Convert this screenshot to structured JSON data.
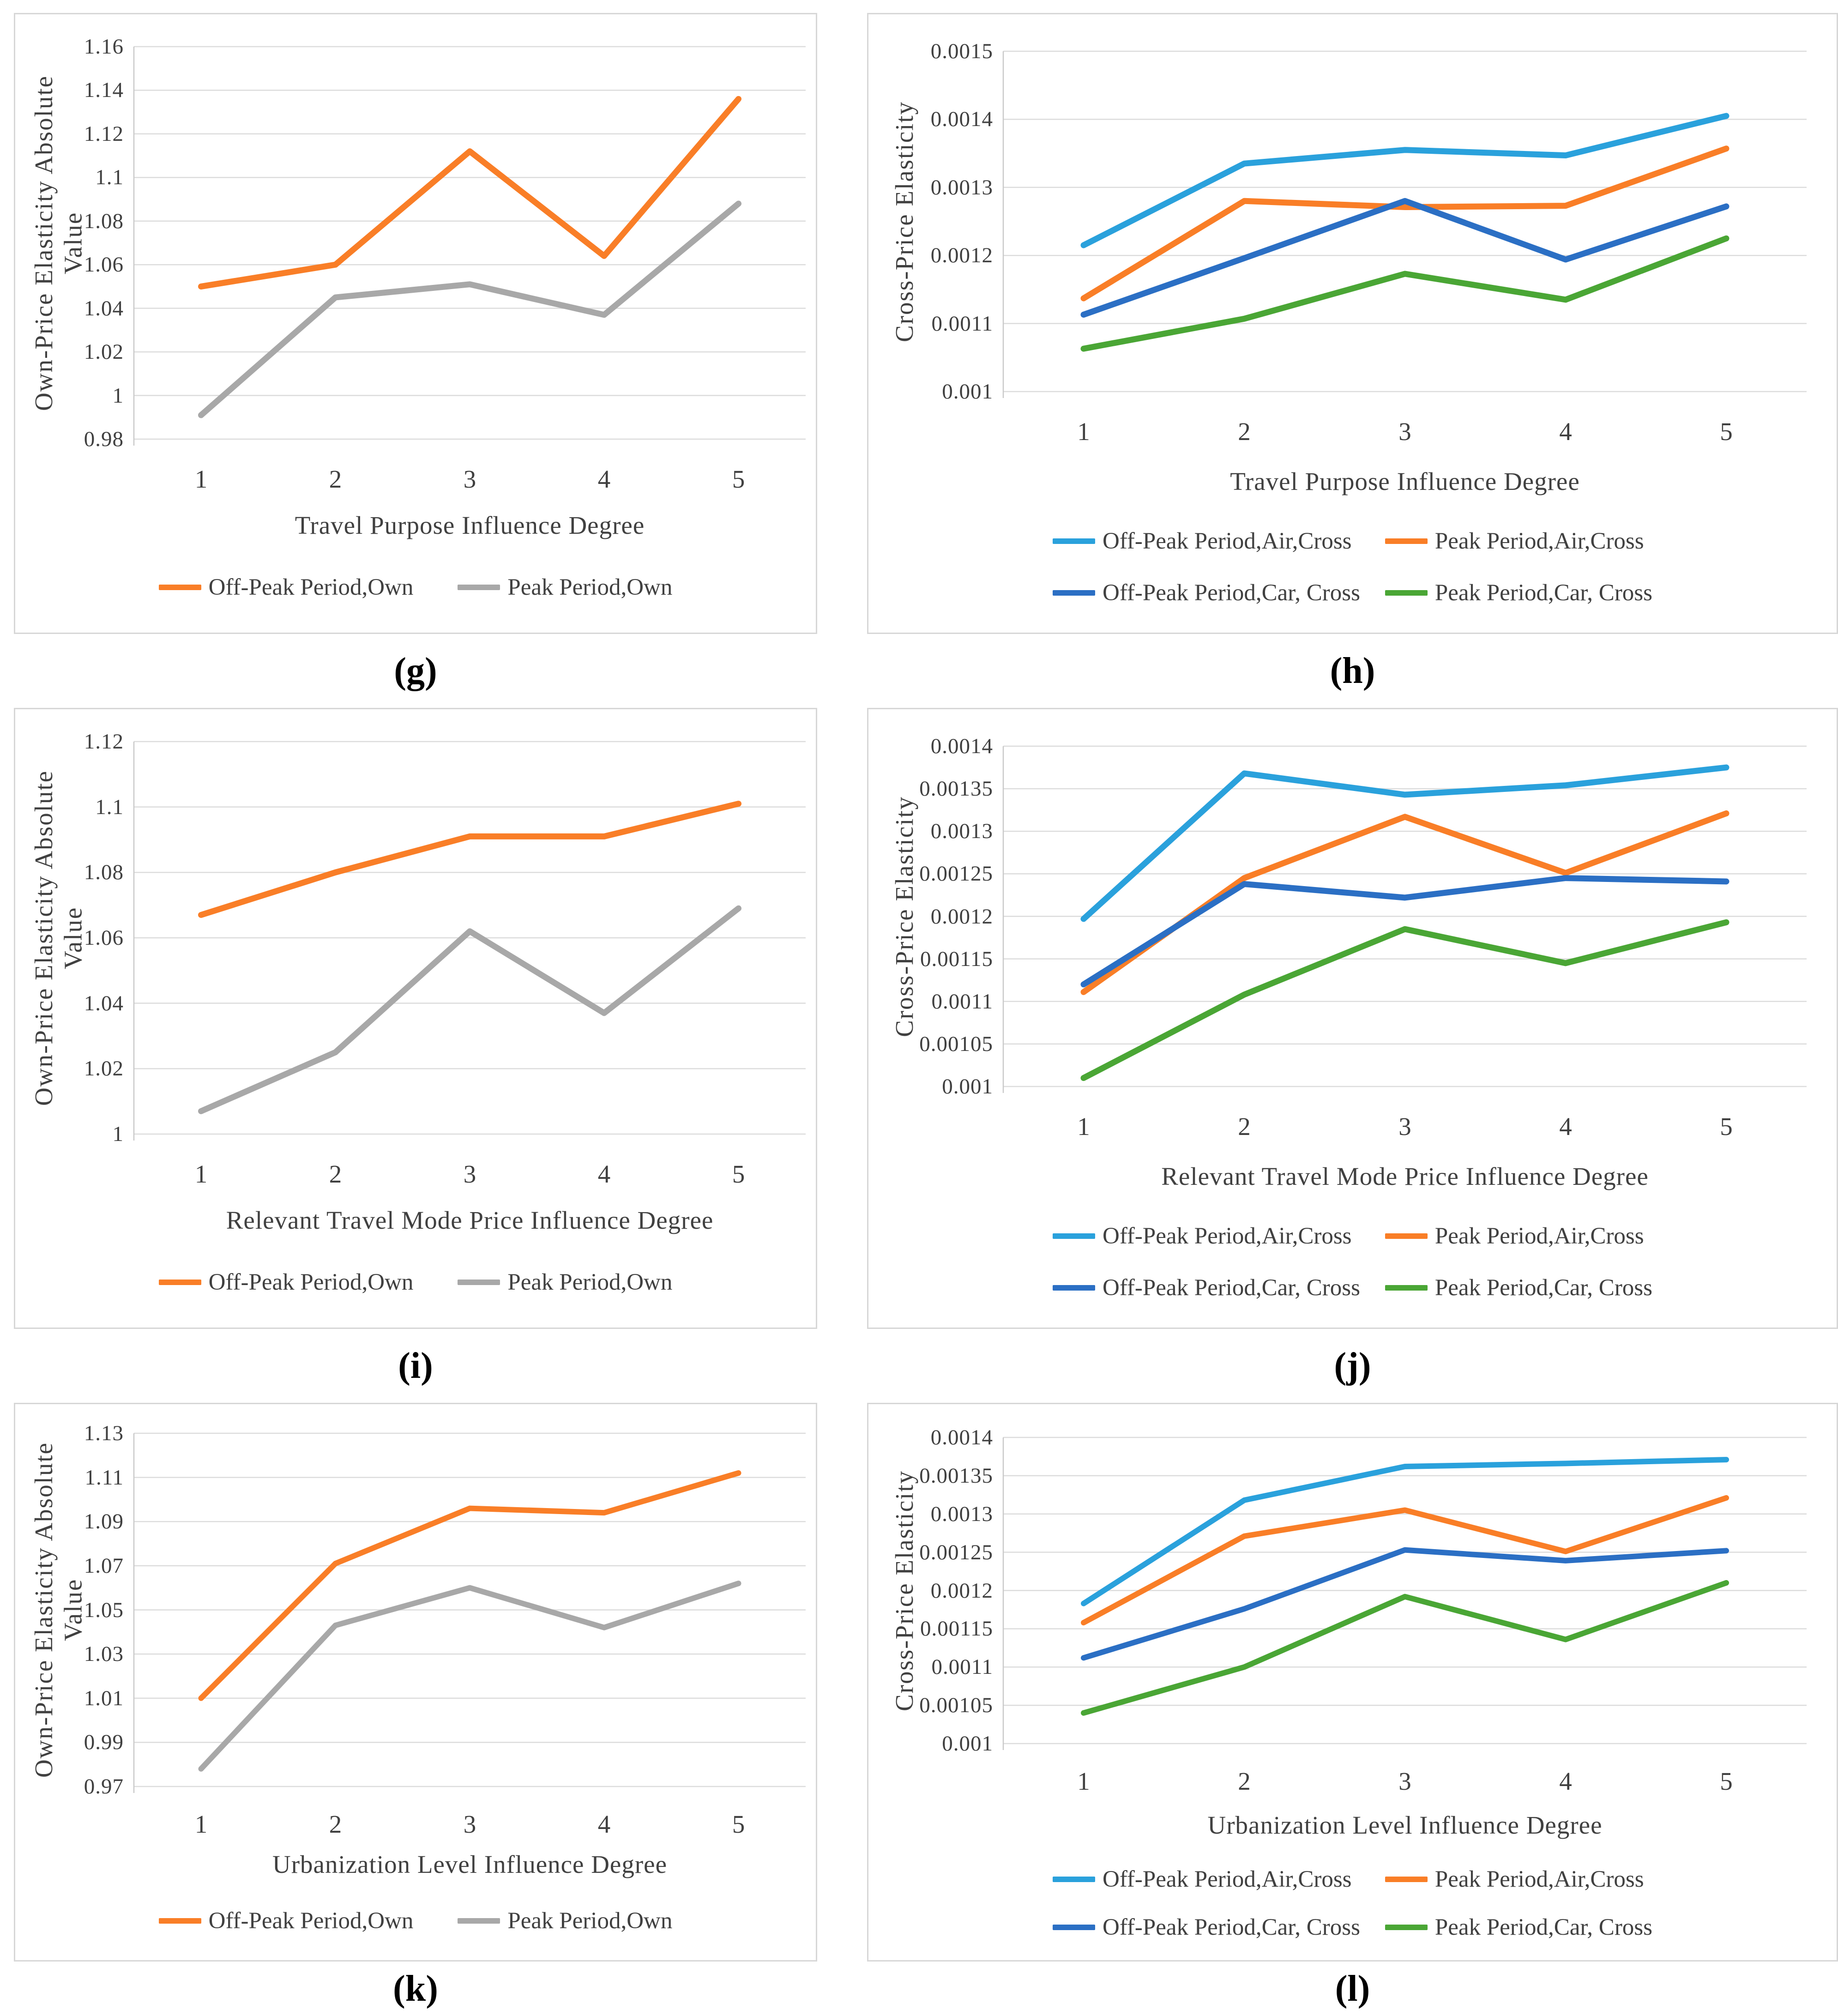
{
  "colors": {
    "lightblue": "#2AA1DC",
    "orange": "#F97E27",
    "darkblue": "#2B6FC4",
    "green": "#4AA635",
    "gray": "#A8A8A8",
    "gridline": "#DCDCDC",
    "axis_line": "#C9C9C9",
    "text": "#3F3F3F"
  },
  "chart_data": [
    {
      "id": "g",
      "caption": "(g)",
      "type": "line",
      "title": "",
      "grid": true,
      "legend_position": "bottom",
      "ylabel": "Own-Price Elasticity Absolute Value",
      "xlabel": "Travel Purpose Influence Degree",
      "categories": [
        "1",
        "2",
        "3",
        "4",
        "5"
      ],
      "ylim": [
        0.98,
        1.16
      ],
      "yticks": [
        {
          "value": 1.16,
          "label": "1.16"
        },
        {
          "value": 1.14,
          "label": "1.14"
        },
        {
          "value": 1.12,
          "label": "1.12"
        },
        {
          "value": 1.1,
          "label": "1.1"
        },
        {
          "value": 1.08,
          "label": "1.08"
        },
        {
          "value": 1.06,
          "label": "1.06"
        },
        {
          "value": 1.04,
          "label": "1.04"
        },
        {
          "value": 1.02,
          "label": "1.02"
        },
        {
          "value": 1.0,
          "label": "1"
        },
        {
          "value": 0.98,
          "label": "0.98"
        }
      ],
      "series": [
        {
          "name": "Off-Peak Period,Own",
          "color": "orange",
          "values": [
            1.05,
            1.06,
            1.112,
            1.064,
            1.136
          ]
        },
        {
          "name": "Peak Period,Own",
          "color": "gray",
          "values": [
            0.991,
            1.045,
            1.051,
            1.037,
            1.088
          ]
        }
      ]
    },
    {
      "id": "h",
      "caption": "(h)",
      "type": "line",
      "title": "",
      "grid": true,
      "legend_position": "bottom",
      "ylabel": "Cross-Price Elasticity",
      "xlabel": "Travel Purpose Influence Degree",
      "categories": [
        "1",
        "2",
        "3",
        "4",
        "5"
      ],
      "ylim": [
        0.001,
        0.0015
      ],
      "yticks": [
        {
          "value": 0.0015,
          "label": "0.0015"
        },
        {
          "value": 0.0014,
          "label": "0.0014"
        },
        {
          "value": 0.0013,
          "label": "0.0013"
        },
        {
          "value": 0.0012,
          "label": "0.0012"
        },
        {
          "value": 0.0011,
          "label": "0.0011"
        },
        {
          "value": 0.001,
          "label": "0.001"
        }
      ],
      "series": [
        {
          "name": "Off-Peak Period,Air,Cross",
          "color": "lightblue",
          "values": [
            0.001215,
            0.001335,
            0.001355,
            0.001347,
            0.001405
          ]
        },
        {
          "name": "Peak Period,Air,Cross",
          "color": "orange",
          "values": [
            0.001137,
            0.00128,
            0.001271,
            0.001273,
            0.001357
          ]
        },
        {
          "name": "Off-Peak Period,Car, Cross",
          "color": "darkblue",
          "values": [
            0.001113,
            0.001196,
            0.00128,
            0.001194,
            0.001272
          ]
        },
        {
          "name": "Peak Period,Car, Cross",
          "color": "green",
          "values": [
            0.001063,
            0.001107,
            0.001173,
            0.001135,
            0.001225
          ]
        }
      ]
    },
    {
      "id": "i",
      "caption": "(i)",
      "type": "line",
      "title": "",
      "grid": true,
      "legend_position": "bottom",
      "ylabel": "Own-Price Elasticity Absolute\nValue",
      "xlabel": "Relevant Travel Mode Price Influence Degree",
      "categories": [
        "1",
        "2",
        "3",
        "4",
        "5"
      ],
      "ylim": [
        1.0,
        1.12
      ],
      "yticks": [
        {
          "value": 1.12,
          "label": "1.12"
        },
        {
          "value": 1.1,
          "label": "1.1"
        },
        {
          "value": 1.08,
          "label": "1.08"
        },
        {
          "value": 1.06,
          "label": "1.06"
        },
        {
          "value": 1.04,
          "label": "1.04"
        },
        {
          "value": 1.02,
          "label": "1.02"
        },
        {
          "value": 1.0,
          "label": "1"
        }
      ],
      "series": [
        {
          "name": "Off-Peak Period,Own",
          "color": "orange",
          "values": [
            1.067,
            1.08,
            1.091,
            1.091,
            1.101
          ]
        },
        {
          "name": "Peak Period,Own",
          "color": "gray",
          "values": [
            1.007,
            1.025,
            1.062,
            1.037,
            1.069
          ]
        }
      ]
    },
    {
      "id": "j",
      "caption": "(j)",
      "type": "line",
      "title": "",
      "grid": true,
      "legend_position": "bottom",
      "ylabel": "Cross-Price Elasticity",
      "xlabel": "Relevant Travel Mode Price Influence Degree",
      "categories": [
        "1",
        "2",
        "3",
        "4",
        "5"
      ],
      "ylim": [
        0.001,
        0.0014
      ],
      "yticks": [
        {
          "value": 0.0014,
          "label": "0.0014"
        },
        {
          "value": 0.00135,
          "label": "0.00135"
        },
        {
          "value": 0.0013,
          "label": "0.0013"
        },
        {
          "value": 0.00125,
          "label": "0.00125"
        },
        {
          "value": 0.0012,
          "label": "0.0012"
        },
        {
          "value": 0.00115,
          "label": "0.00115"
        },
        {
          "value": 0.0011,
          "label": "0.0011"
        },
        {
          "value": 0.00105,
          "label": "0.00105"
        },
        {
          "value": 0.001,
          "label": "0.001"
        }
      ],
      "series": [
        {
          "name": "Off-Peak Period,Air,Cross",
          "color": "lightblue",
          "values": [
            0.001197,
            0.001368,
            0.001343,
            0.001354,
            0.001375
          ]
        },
        {
          "name": "Peak Period,Air,Cross",
          "color": "orange",
          "values": [
            0.001111,
            0.001245,
            0.001317,
            0.001251,
            0.001321
          ]
        },
        {
          "name": "Off-Peak Period,Car, Cross",
          "color": "darkblue",
          "values": [
            0.00112,
            0.001238,
            0.001222,
            0.001245,
            0.001241
          ]
        },
        {
          "name": "Peak Period,Car, Cross",
          "color": "green",
          "values": [
            0.00101,
            0.001108,
            0.001185,
            0.001145,
            0.001193
          ]
        }
      ]
    },
    {
      "id": "k",
      "caption": "(k)",
      "type": "line",
      "title": "",
      "grid": true,
      "legend_position": "bottom",
      "ylabel": "Own-Price Elasticity Absolute Value",
      "xlabel": "Urbanization Level Influence Degree",
      "categories": [
        "1",
        "2",
        "3",
        "4",
        "5"
      ],
      "ylim": [
        0.97,
        1.13
      ],
      "yticks": [
        {
          "value": 1.13,
          "label": "1.13"
        },
        {
          "value": 1.11,
          "label": "1.11"
        },
        {
          "value": 1.09,
          "label": "1.09"
        },
        {
          "value": 1.07,
          "label": "1.07"
        },
        {
          "value": 1.05,
          "label": "1.05"
        },
        {
          "value": 1.03,
          "label": "1.03"
        },
        {
          "value": 1.01,
          "label": "1.01"
        },
        {
          "value": 0.99,
          "label": "0.99"
        },
        {
          "value": 0.97,
          "label": "0.97"
        }
      ],
      "series": [
        {
          "name": "Off-Peak Period,Own",
          "color": "orange",
          "values": [
            1.01,
            1.071,
            1.096,
            1.094,
            1.112
          ]
        },
        {
          "name": "Peak Period,Own",
          "color": "gray",
          "values": [
            0.978,
            1.043,
            1.06,
            1.042,
            1.062
          ]
        }
      ]
    },
    {
      "id": "l",
      "caption": "(l)",
      "type": "line",
      "title": "",
      "grid": true,
      "legend_position": "bottom",
      "ylabel": "Cross-Price Elasticity",
      "xlabel": "Urbanization Level Influence Degree",
      "categories": [
        "1",
        "2",
        "3",
        "4",
        "5"
      ],
      "ylim": [
        0.001,
        0.0014
      ],
      "yticks": [
        {
          "value": 0.0014,
          "label": "0.0014"
        },
        {
          "value": 0.00135,
          "label": "0.00135"
        },
        {
          "value": 0.0013,
          "label": "0.0013"
        },
        {
          "value": 0.00125,
          "label": "0.00125"
        },
        {
          "value": 0.0012,
          "label": "0.0012"
        },
        {
          "value": 0.00115,
          "label": "0.00115"
        },
        {
          "value": 0.0011,
          "label": "0.0011"
        },
        {
          "value": 0.00105,
          "label": "0.00105"
        },
        {
          "value": 0.001,
          "label": "0.001"
        }
      ],
      "series": [
        {
          "name": "Off-Peak Period,Air,Cross",
          "color": "lightblue",
          "values": [
            0.001183,
            0.001318,
            0.001362,
            0.001366,
            0.001371
          ]
        },
        {
          "name": "Peak Period,Air,Cross",
          "color": "orange",
          "values": [
            0.001158,
            0.001271,
            0.001305,
            0.001251,
            0.001321
          ]
        },
        {
          "name": "Off-Peak Period,Car, Cross",
          "color": "darkblue",
          "values": [
            0.001112,
            0.001176,
            0.001253,
            0.001239,
            0.001252
          ]
        },
        {
          "name": "Peak Period,Car, Cross",
          "color": "green",
          "values": [
            0.00104,
            0.0011,
            0.001192,
            0.001136,
            0.00121
          ]
        }
      ]
    }
  ]
}
